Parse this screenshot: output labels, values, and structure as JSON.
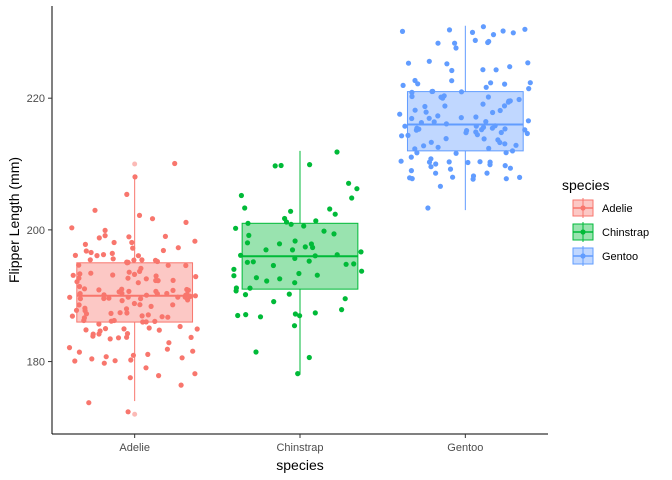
{
  "chart_data": {
    "type": "boxplot-jitter",
    "xlabel": "species",
    "ylabel": "Flipper Length (mm)",
    "categories": [
      "Adelie",
      "Chinstrap",
      "Gentoo"
    ],
    "ylim": [
      169,
      234
    ],
    "yticks": [
      180,
      200,
      220
    ],
    "grid": false,
    "legend": {
      "title": "species",
      "placement": "right",
      "entries": [
        "Adelie",
        "Chinstrap",
        "Gentoo"
      ]
    },
    "colors": {
      "Adelie": "#F8766D",
      "Chinstrap": "#00BA38",
      "Gentoo": "#619CFF"
    },
    "boxes": [
      {
        "name": "Adelie",
        "min": 174,
        "q1": 186,
        "median": 190,
        "q3": 195,
        "max": 208,
        "outliers": [
          210,
          172
        ]
      },
      {
        "name": "Chinstrap",
        "min": 178,
        "q1": 191,
        "median": 196,
        "q3": 201,
        "max": 212,
        "outliers": []
      },
      {
        "name": "Gentoo",
        "min": 203,
        "q1": 212,
        "median": 216,
        "q3": 221,
        "max": 231,
        "outliers": []
      }
    ],
    "series": [
      {
        "name": "Adelie",
        "values": [
          181,
          186,
          195,
          193,
          190,
          181,
          195,
          193,
          190,
          186,
          180,
          182,
          191,
          198,
          185,
          195,
          197,
          184,
          194,
          174,
          180,
          189,
          185,
          180,
          187,
          183,
          187,
          172,
          180,
          178,
          178,
          188,
          184,
          195,
          196,
          190,
          180,
          181,
          184,
          182,
          195,
          186,
          196,
          185,
          190,
          182,
          179,
          190,
          191,
          186,
          188,
          190,
          200,
          187,
          191,
          186,
          193,
          181,
          194,
          185,
          195,
          185,
          192,
          184,
          192,
          195,
          188,
          190,
          198,
          190,
          190,
          196,
          197,
          190,
          195,
          191,
          184,
          187,
          195,
          189,
          196,
          187,
          193,
          191,
          194,
          190,
          189,
          189,
          190,
          202,
          205,
          185,
          186,
          187,
          208,
          190,
          196,
          178,
          192,
          192,
          203,
          183,
          190,
          193,
          184,
          199,
          190,
          181,
          197,
          198,
          191,
          193,
          197,
          191,
          196,
          188,
          199,
          189,
          189,
          187,
          198,
          176,
          202,
          186,
          199,
          191,
          195,
          191,
          210,
          190,
          197,
          193,
          199,
          187,
          190,
          191,
          200,
          185,
          193,
          193,
          187,
          188,
          190,
          192,
          185,
          190,
          184,
          195,
          193,
          187,
          201
        ]
      },
      {
        "name": "Chinstrap",
        "values": [
          192,
          196,
          193,
          188,
          197,
          198,
          178,
          197,
          195,
          198,
          193,
          194,
          185,
          201,
          190,
          201,
          197,
          181,
          190,
          195,
          181,
          191,
          187,
          193,
          195,
          197,
          200,
          200,
          191,
          205,
          187,
          201,
          187,
          203,
          195,
          199,
          195,
          210,
          192,
          205,
          210,
          187,
          196,
          196,
          196,
          201,
          190,
          212,
          187,
          198,
          199,
          201,
          193,
          203,
          187,
          197,
          191,
          203,
          202,
          194,
          206,
          189,
          195,
          207,
          202,
          193,
          210,
          198
        ]
      },
      {
        "name": "Gentoo",
        "values": [
          211,
          230,
          210,
          218,
          215,
          210,
          211,
          219,
          209,
          215,
          214,
          216,
          214,
          213,
          210,
          217,
          210,
          221,
          209,
          222,
          218,
          215,
          213,
          215,
          215,
          215,
          216,
          215,
          210,
          220,
          222,
          209,
          207,
          230,
          220,
          220,
          213,
          219,
          208,
          208,
          208,
          225,
          210,
          216,
          222,
          217,
          210,
          225,
          213,
          215,
          210,
          220,
          210,
          225,
          217,
          220,
          208,
          220,
          208,
          224,
          208,
          221,
          214,
          231,
          219,
          230,
          214,
          229,
          220,
          223,
          216,
          221,
          221,
          217,
          216,
          230,
          209,
          220,
          215,
          223,
          212,
          221,
          212,
          224,
          212,
          228,
          218,
          218,
          212,
          230,
          218,
          228,
          212,
          224,
          214,
          226,
          216,
          222,
          203,
          225,
          219,
          228,
          215,
          228,
          216,
          215,
          210,
          219,
          208,
          209,
          216,
          229,
          213,
          230,
          217,
          230,
          217,
          222,
          214,
          215,
          222,
          212,
          213
        ]
      }
    ]
  }
}
